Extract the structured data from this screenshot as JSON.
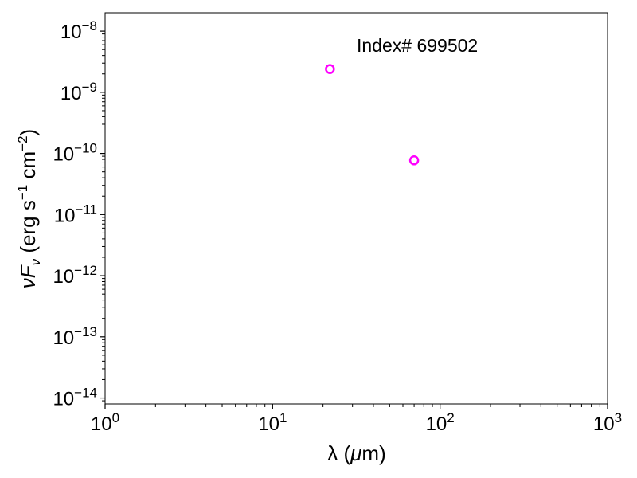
{
  "chart_data": {
    "type": "scatter",
    "annotation": "Index# 699502",
    "xlabel": {
      "base": "λ (",
      "mu": "μ",
      "rest": "m)"
    },
    "ylabel": {
      "nu": "ν",
      "F": "F",
      "sub": "ν",
      "units_a": " (erg s",
      "exp1": "−1",
      "units_b": " cm",
      "exp2": "−2",
      "units_c": ")"
    },
    "x_scale": "log",
    "y_scale": "log",
    "xlim": [
      1,
      1000
    ],
    "ylim": [
      8e-15,
      2e-08
    ],
    "x_ticks": [
      {
        "value": 1,
        "exp": "0"
      },
      {
        "value": 10,
        "exp": "1"
      },
      {
        "value": 100,
        "exp": "2"
      },
      {
        "value": 1000,
        "exp": "3"
      }
    ],
    "y_ticks": [
      {
        "value": 1e-14,
        "exp": "−14"
      },
      {
        "value": 1e-13,
        "exp": "−13"
      },
      {
        "value": 1e-12,
        "exp": "−12"
      },
      {
        "value": 1e-11,
        "exp": "−11"
      },
      {
        "value": 1e-10,
        "exp": "−10"
      },
      {
        "value": 1e-09,
        "exp": "−9"
      },
      {
        "value": 1e-08,
        "exp": "−8"
      }
    ],
    "tick_base": "10",
    "series": [
      {
        "color": "#ff00ff",
        "marker": "open-circle",
        "points": [
          {
            "x": 22,
            "y": 2.4e-09
          },
          {
            "x": 70,
            "y": 7.7e-11
          }
        ]
      }
    ],
    "grid": false,
    "legend": "none"
  }
}
